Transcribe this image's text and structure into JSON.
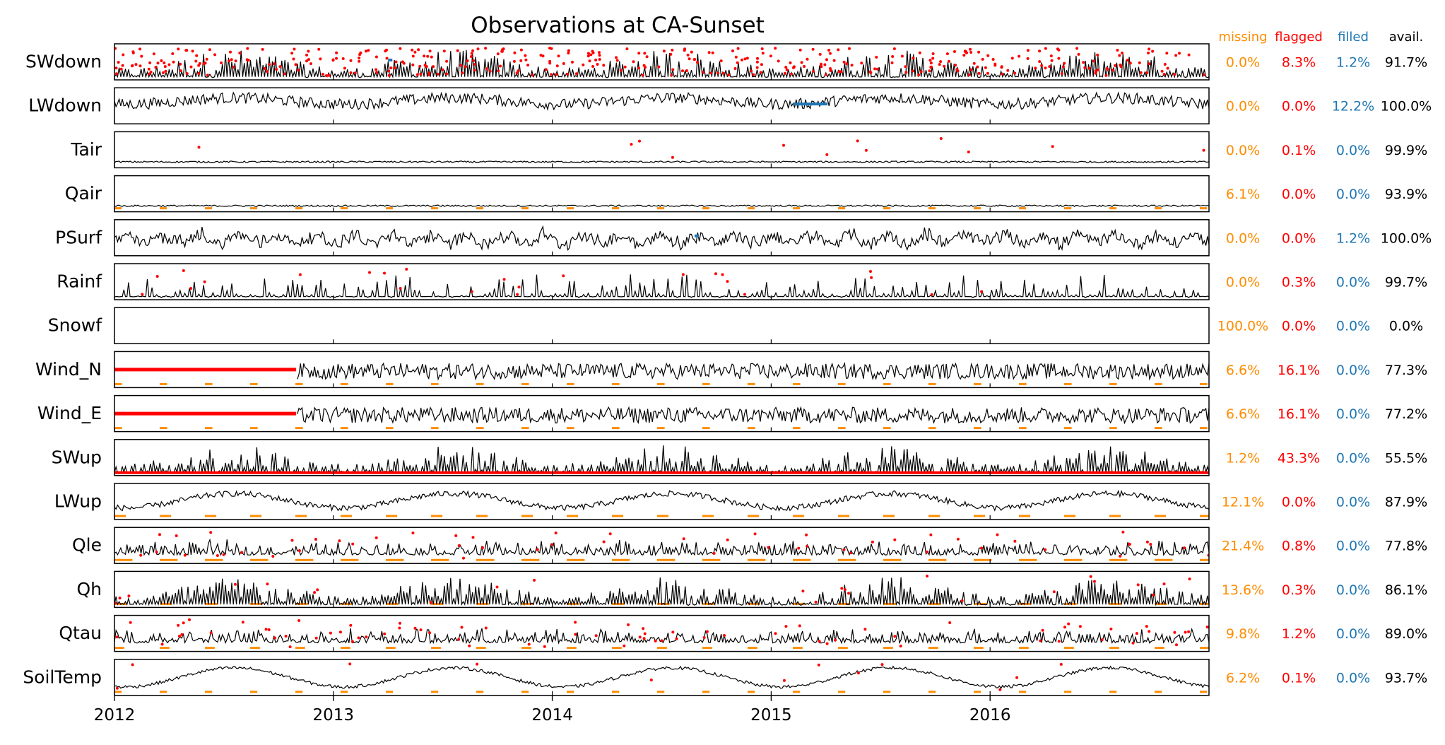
{
  "chart_data": {
    "type": "line",
    "title": "Observations at CA-Sunset",
    "x_ticks": [
      "2012",
      "2013",
      "2014",
      "2015",
      "2016"
    ],
    "xlim": [
      "2012-01-01",
      "2016-12-31"
    ],
    "colors": {
      "observed": "#000000",
      "missing": "#ff8c00",
      "flagged": "#ff0000",
      "filled": "#1f77b4"
    },
    "stat_headers": [
      "missing",
      "flagged",
      "filled",
      "avail."
    ],
    "series": [
      {
        "name": "SWdown",
        "missing": "0.0%",
        "flagged": "8.3%",
        "filled": "1.2%",
        "avail": "91.7%"
      },
      {
        "name": "LWdown",
        "missing": "0.0%",
        "flagged": "0.0%",
        "filled": "12.2%",
        "avail": "100.0%"
      },
      {
        "name": "Tair",
        "missing": "0.0%",
        "flagged": "0.1%",
        "filled": "0.0%",
        "avail": "99.9%"
      },
      {
        "name": "Qair",
        "missing": "6.1%",
        "flagged": "0.0%",
        "filled": "0.0%",
        "avail": "93.9%"
      },
      {
        "name": "PSurf",
        "missing": "0.0%",
        "flagged": "0.0%",
        "filled": "1.2%",
        "avail": "100.0%"
      },
      {
        "name": "Rainf",
        "missing": "0.0%",
        "flagged": "0.3%",
        "filled": "0.0%",
        "avail": "99.7%"
      },
      {
        "name": "Snowf",
        "missing": "100.0%",
        "flagged": "0.0%",
        "filled": "0.0%",
        "avail": "0.0%"
      },
      {
        "name": "Wind_N",
        "missing": "6.6%",
        "flagged": "16.1%",
        "filled": "0.0%",
        "avail": "77.3%"
      },
      {
        "name": "Wind_E",
        "missing": "6.6%",
        "flagged": "16.1%",
        "filled": "0.0%",
        "avail": "77.2%"
      },
      {
        "name": "SWup",
        "missing": "1.2%",
        "flagged": "43.3%",
        "filled": "0.0%",
        "avail": "55.5%"
      },
      {
        "name": "LWup",
        "missing": "12.1%",
        "flagged": "0.0%",
        "filled": "0.0%",
        "avail": "87.9%"
      },
      {
        "name": "Qle",
        "missing": "21.4%",
        "flagged": "0.8%",
        "filled": "0.0%",
        "avail": "77.8%"
      },
      {
        "name": "Qh",
        "missing": "13.6%",
        "flagged": "0.3%",
        "filled": "0.0%",
        "avail": "86.1%"
      },
      {
        "name": "Qtau",
        "missing": "9.8%",
        "flagged": "1.2%",
        "filled": "0.0%",
        "avail": "89.0%"
      },
      {
        "name": "SoilTemp",
        "missing": "6.2%",
        "flagged": "0.1%",
        "filled": "0.0%",
        "avail": "93.7%"
      }
    ]
  }
}
